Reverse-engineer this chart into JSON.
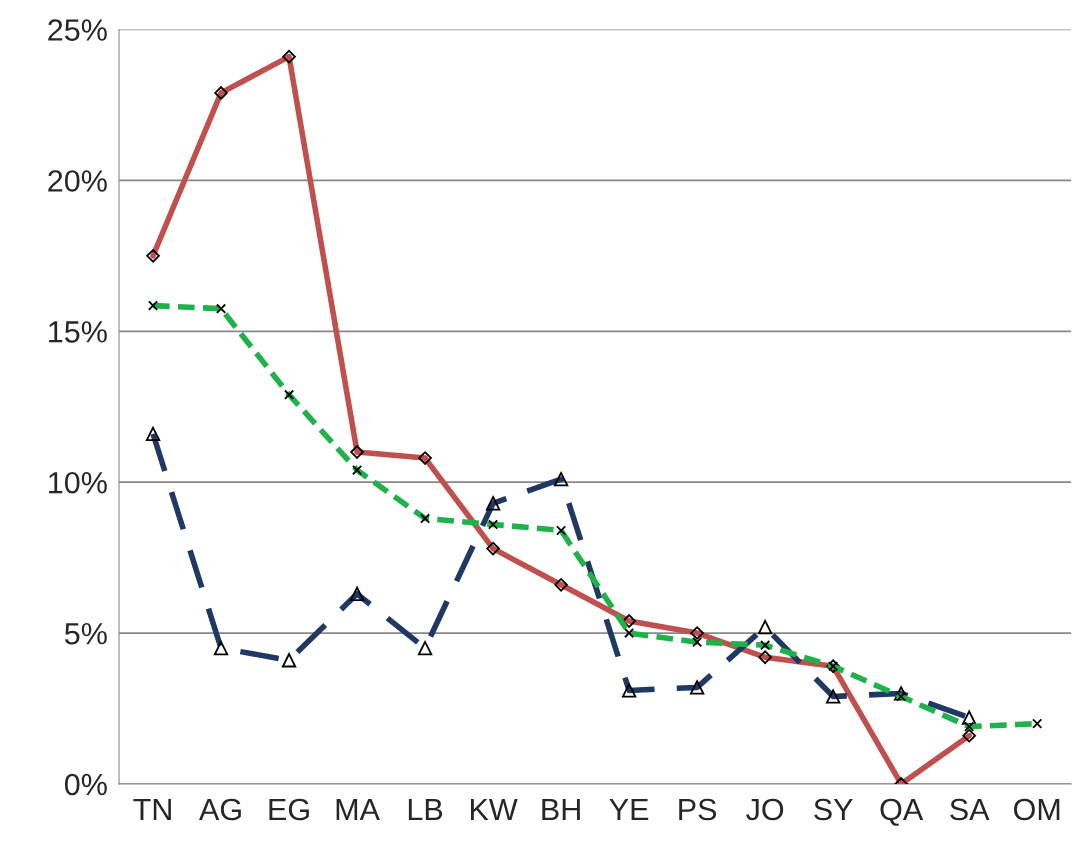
{
  "chart_data": {
    "type": "line",
    "categories": [
      "TN",
      "AG",
      "EG",
      "MA",
      "LB",
      "KW",
      "BH",
      "YE",
      "PS",
      "JO",
      "SY",
      "QA",
      "SA",
      "OM"
    ],
    "series": [
      {
        "color": "#c0504d",
        "marker": "diamond",
        "line_style": "solid",
        "values": [
          17.5,
          22.9,
          24.1,
          11.0,
          10.8,
          7.8,
          6.6,
          5.4,
          5.0,
          4.2,
          3.9,
          0,
          1.6,
          null
        ]
      },
      {
        "color": "#1fb24a",
        "marker": "cross",
        "line_style": "dashed",
        "values": [
          15.85,
          15.75,
          12.9,
          10.4,
          8.8,
          8.6,
          8.4,
          5.0,
          4.7,
          4.6,
          3.9,
          2.9,
          1.9,
          2.0
        ]
      },
      {
        "color": "#1f3864",
        "marker": "triangle",
        "line_style": "longdash",
        "values": [
          11.6,
          4.5,
          4.1,
          6.3,
          4.5,
          9.3,
          10.1,
          3.1,
          3.2,
          5.2,
          2.9,
          3.0,
          2.2,
          null
        ]
      }
    ],
    "ylim": [
      0,
      25
    ],
    "yticks": [
      {
        "value": 0,
        "label": "0%"
      },
      {
        "value": 5,
        "label": "5%"
      },
      {
        "value": 10,
        "label": "10%"
      },
      {
        "value": 15,
        "label": "15%"
      },
      {
        "value": 20,
        "label": "20%"
      },
      {
        "value": 25,
        "label": "25%"
      }
    ],
    "grid": "y",
    "legend": false
  }
}
